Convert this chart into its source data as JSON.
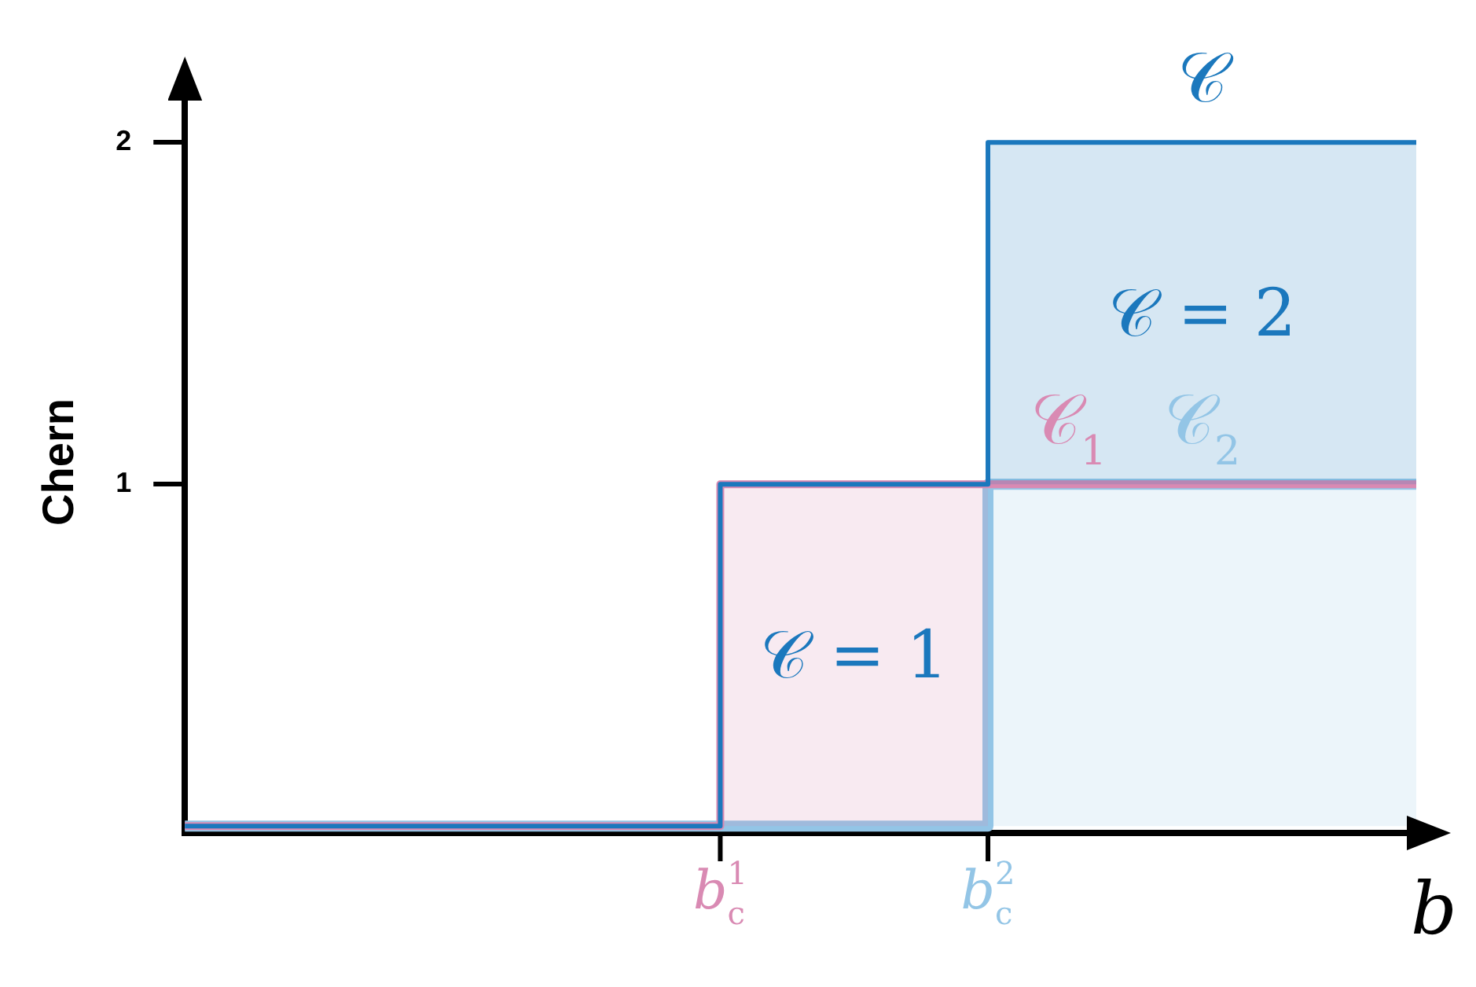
{
  "chart_data": {
    "type": "step",
    "ylabel": "Chern",
    "xlabel": "b",
    "categories": [
      null,
      null,
      null,
      null,
      null,
      null,
      null,
      null,
      null,
      null,
      "b$_{c}$$^{1}$",
      null,
      null,
      null,
      null,
      "b$_{c}$$^{2}$",
      null,
      null,
      null,
      null,
      null,
      null,
      null,
      null
    ],
    "ylim": [
      -0.02,
      2.15
    ],
    "yticks": [
      1,
      2
    ],
    "grid": false,
    "legend": false,
    "series": [
      {
        "name": "𝒞$_{2}$",
        "color": "#93c5e6",
        "values": [
          0,
          0,
          0,
          0,
          0,
          0,
          0,
          0,
          0,
          0,
          0,
          0,
          0,
          0,
          0,
          1,
          1,
          1,
          1,
          1,
          1,
          1,
          1,
          1
        ]
      },
      {
        "name": "𝒞$_{1}$",
        "color": "#d98ab3",
        "values": [
          0,
          0,
          0,
          0,
          0,
          0,
          0,
          0,
          0,
          0,
          1,
          1,
          1,
          1,
          1,
          1,
          1,
          1,
          1,
          1,
          1,
          1,
          1,
          1
        ]
      },
      {
        "name": "𝒞",
        "color": "#1b78bd",
        "values": [
          0,
          0,
          0,
          0,
          0,
          0,
          0,
          0,
          0,
          0,
          1,
          1,
          1,
          1,
          1,
          2,
          2,
          2,
          2,
          2,
          2,
          2,
          2,
          2
        ]
      }
    ],
    "annotations": [
      "𝒞 = 2",
      "𝒞 = 1"
    ]
  }
}
